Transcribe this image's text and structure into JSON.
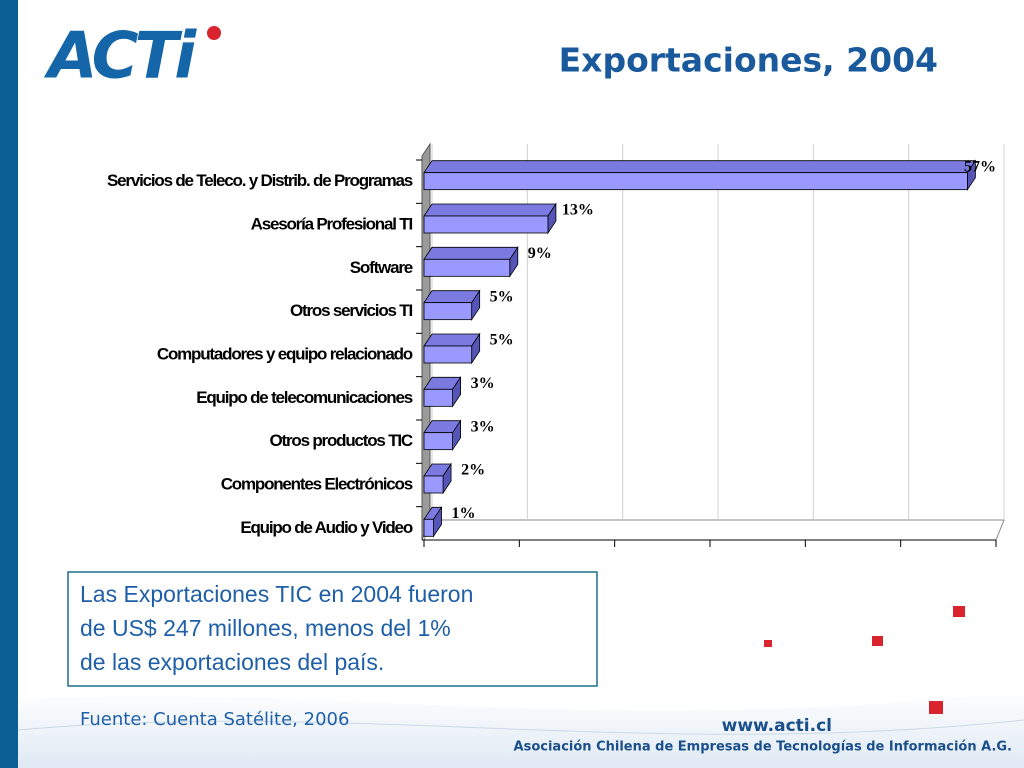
{
  "logo": "ACTi",
  "title": "Exportaciones, 2004",
  "note": [
    "Las Exportaciones TIC en 2004 fueron",
    "de US$ 247 millones, menos del 1%",
    "de las exportaciones del país."
  ],
  "source": "Fuente: Cuenta Satélite, 2006",
  "footer": {
    "website": "www.acti.cl",
    "organization": "Asociación Chilena de Empresas de Tecnologías de Información A.G."
  },
  "chart_data": {
    "type": "hbar",
    "categories": [
      "Servicios de Teleco. y Distrib. de Programas",
      "Asesoría Profesional TI",
      "Software",
      "Otros servicios TI",
      "Computadores y equipo relacionado",
      "Equipo de telecomunicaciones",
      "Otros productos TIC",
      "Componentes Electrónicos",
      "Equipo de Audio y Video"
    ],
    "values": [
      57,
      13,
      9,
      5,
      5,
      3,
      3,
      2,
      1
    ],
    "value_labels": [
      "57%",
      "13%",
      "9%",
      "5%",
      "5%",
      "3%",
      "3%",
      "2%",
      "1%"
    ],
    "color": "#9999ff",
    "xlim": [
      0,
      60
    ],
    "xticks": [
      0,
      10,
      20,
      30,
      40,
      50,
      60
    ],
    "grid": true
  }
}
